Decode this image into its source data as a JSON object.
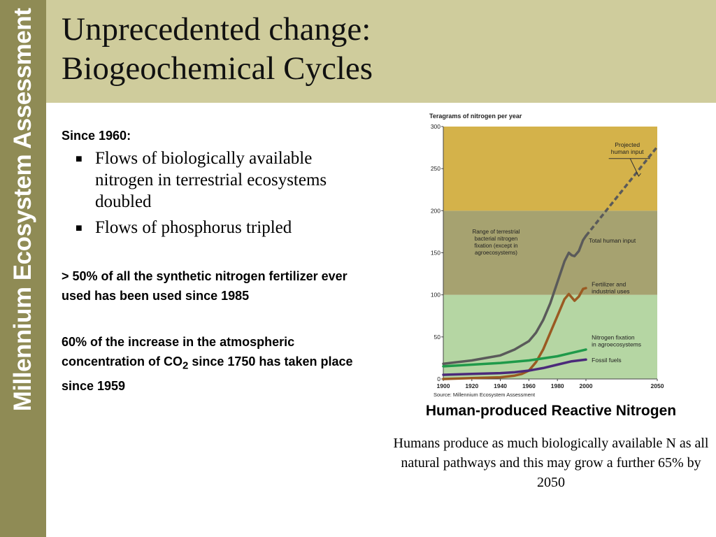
{
  "sidebar": {
    "text": "Millennium Ecosystem Assessment"
  },
  "header": {
    "title_line1": "Unprecedented change:",
    "title_line2": "Biogeochemical Cycles"
  },
  "left": {
    "since_label": "Since 1960:",
    "bullets": [
      "Flows of biologically available nitrogen in terrestrial ecosystems doubled",
      "Flows of phosphorus tripled"
    ],
    "stat1": "> 50% of all the synthetic nitrogen fertilizer ever used has been used since 1985",
    "stat2_prefix": "60% of the increase in the atmospheric concentration of CO",
    "stat2_sub": "2",
    "stat2_suffix": " since 1750 has taken place since 1959"
  },
  "chart_caption": "Human-produced Reactive Nitrogen",
  "chart_description": "Humans produce as much biologically available N as all natural pathways and this may grow a further 65% by 2050",
  "chart_data": {
    "type": "line",
    "ylabel": "Teragrams of nitrogen per year",
    "source": "Source: Millennium Ecosystem Assessment",
    "xlim": [
      1900,
      2050
    ],
    "ylim": [
      0,
      300
    ],
    "xticks": [
      1900,
      1920,
      1940,
      1960,
      1980,
      2000,
      2050
    ],
    "yticks": [
      0,
      50,
      100,
      150,
      200,
      250,
      300
    ],
    "bands": [
      {
        "from": 0,
        "to": 100,
        "color": "#b5d6a3"
      },
      {
        "from": 100,
        "to": 200,
        "color": "#a6a270"
      },
      {
        "from": 200,
        "to": 300,
        "color": "#d4b24a"
      }
    ],
    "band_label": [
      "Range of terrestrial",
      "bacterial nitrogen",
      "fixation (except in",
      "agroecosystems)"
    ],
    "projection_label": [
      "Projected",
      "human input"
    ],
    "series": [
      {
        "name": "Total human input",
        "label_lines": [
          "Total human input"
        ],
        "color": "#5a5a5a",
        "points": [
          [
            1900,
            18
          ],
          [
            1910,
            20
          ],
          [
            1920,
            22
          ],
          [
            1930,
            25
          ],
          [
            1940,
            28
          ],
          [
            1950,
            35
          ],
          [
            1960,
            45
          ],
          [
            1965,
            55
          ],
          [
            1970,
            70
          ],
          [
            1975,
            90
          ],
          [
            1980,
            115
          ],
          [
            1985,
            140
          ],
          [
            1988,
            150
          ],
          [
            1990,
            147
          ],
          [
            1992,
            146
          ],
          [
            1995,
            152
          ],
          [
            1998,
            165
          ],
          [
            2000,
            170
          ]
        ]
      },
      {
        "name": "Fertilizer and industrial uses",
        "label_lines": [
          "Fertilizer and",
          "industrial uses"
        ],
        "color": "#9a5a22",
        "points": [
          [
            1900,
            0
          ],
          [
            1920,
            1
          ],
          [
            1940,
            2
          ],
          [
            1950,
            4
          ],
          [
            1955,
            6
          ],
          [
            1960,
            10
          ],
          [
            1965,
            20
          ],
          [
            1970,
            35
          ],
          [
            1975,
            55
          ],
          [
            1980,
            75
          ],
          [
            1985,
            95
          ],
          [
            1988,
            101
          ],
          [
            1990,
            97
          ],
          [
            1992,
            93
          ],
          [
            1995,
            98
          ],
          [
            1998,
            107
          ],
          [
            2000,
            108
          ]
        ]
      },
      {
        "name": "Nitrogen fixation in agroecosystems",
        "label_lines": [
          "Nitrogen fixation",
          "in agroecosystems"
        ],
        "color": "#1f9a4a",
        "points": [
          [
            1900,
            15
          ],
          [
            1920,
            17
          ],
          [
            1940,
            19
          ],
          [
            1960,
            22
          ],
          [
            1980,
            27
          ],
          [
            1990,
            31
          ],
          [
            2000,
            35
          ]
        ]
      },
      {
        "name": "Fossil fuels",
        "label_lines": [
          "Fossil fuels"
        ],
        "color": "#4b2a7a",
        "points": [
          [
            1900,
            5
          ],
          [
            1920,
            6
          ],
          [
            1940,
            7
          ],
          [
            1950,
            8
          ],
          [
            1960,
            10
          ],
          [
            1970,
            13
          ],
          [
            1980,
            17
          ],
          [
            1990,
            21
          ],
          [
            2000,
            23
          ]
        ]
      }
    ],
    "projection": {
      "name": "Projected human input",
      "color": "#5a5a5a",
      "points": [
        [
          2000,
          170
        ],
        [
          2050,
          276
        ]
      ]
    }
  }
}
